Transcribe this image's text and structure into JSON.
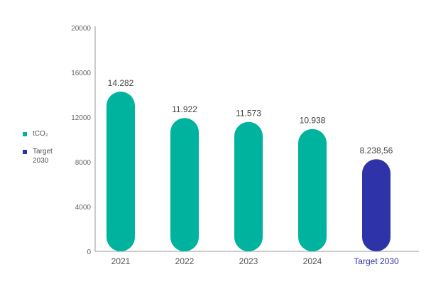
{
  "colors": {
    "primary": "#00B39E",
    "target": "#2E33A8",
    "axis_text": "#666666",
    "value_text": "#444444",
    "axis_line": "#999999"
  },
  "legend": [
    {
      "label": "tCO₂",
      "color": "#00B39E"
    },
    {
      "label": "Target\n2030",
      "color": "#2E33A8"
    }
  ],
  "chart_data": {
    "type": "bar",
    "title": "",
    "xlabel": "",
    "ylabel": "",
    "categories": [
      "2021",
      "2022",
      "2023",
      "2024",
      "Target 2030"
    ],
    "values": [
      14282,
      11922,
      11573,
      10938,
      8238.56
    ],
    "value_labels": [
      "14.282",
      "11.922",
      "11.573",
      "10.938",
      "8.238,56"
    ],
    "bar_colors": [
      "#00B39E",
      "#00B39E",
      "#00B39E",
      "#00B39E",
      "#2E33A8"
    ],
    "category_colors": [
      "#555555",
      "#555555",
      "#555555",
      "#555555",
      "#2E33A8"
    ],
    "ylim": [
      0,
      20000
    ],
    "yticks": [
      0,
      4000,
      8000,
      12000,
      16000,
      20000
    ],
    "ytick_labels": [
      "0",
      "4000",
      "8000",
      "12000",
      "16000",
      "20000"
    ],
    "grid": false,
    "legend_position": "left"
  }
}
